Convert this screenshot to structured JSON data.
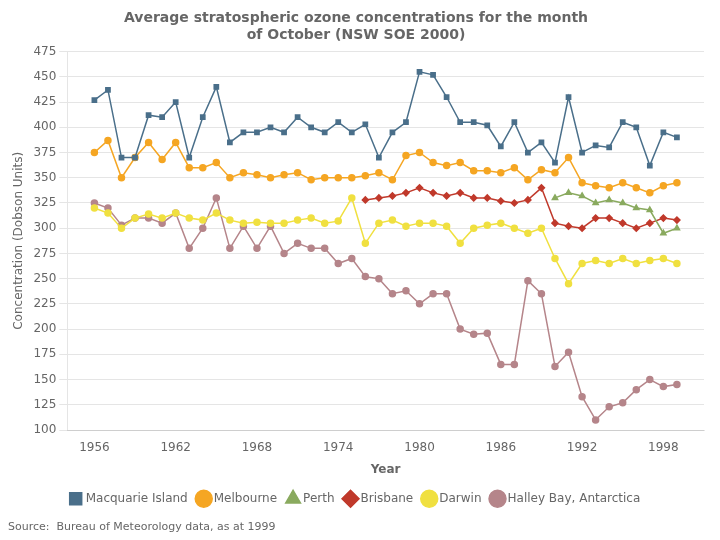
{
  "chart_data": {
    "type": "line",
    "title": [
      "Average stratospheric ozone concentrations for the month",
      "of October (NSW SOE 2000)"
    ],
    "xlabel": "Year",
    "ylabel": "Concentration (Dobson Units)",
    "annotations": [
      "Source:  Bureau of Meteorology data, as at 1999"
    ],
    "xlim": [
      1954,
      2001
    ],
    "xticks": [
      1956,
      1962,
      1968,
      1974,
      1980,
      1986,
      1992,
      1998
    ],
    "ylim": [
      100,
      475
    ],
    "yticks": [
      100,
      125,
      150,
      175,
      200,
      225,
      250,
      275,
      300,
      325,
      350,
      375,
      400,
      425,
      450,
      475
    ],
    "grid": "y",
    "legend": "bottom",
    "series": [
      {
        "name": "Macquarie Island",
        "color": "#4a6f8a",
        "marker": "square",
        "x": [
          1956,
          1957,
          1958,
          1959,
          1960,
          1961,
          1962,
          1963,
          1964,
          1965,
          1966,
          1967,
          1968,
          1969,
          1970,
          1971,
          1972,
          1973,
          1974,
          1975,
          1976,
          1977,
          1978,
          1979,
          1980,
          1981,
          1982,
          1983,
          1984,
          1985,
          1986,
          1987,
          1988,
          1989,
          1990,
          1991,
          1992,
          1993,
          1994,
          1995,
          1996,
          1997,
          1998,
          1999
        ],
        "values": [
          427,
          437,
          370,
          370,
          412,
          410,
          425,
          370,
          410,
          440,
          385,
          395,
          395,
          400,
          395,
          410,
          400,
          395,
          405,
          395,
          403,
          370,
          395,
          405,
          455,
          452,
          430,
          405,
          405,
          402,
          381,
          405,
          375,
          385,
          365,
          430,
          375,
          382,
          380,
          405,
          400,
          362,
          395,
          390
        ]
      },
      {
        "name": "Melbourne",
        "color": "#f5a623",
        "marker": "circle",
        "x": [
          1956,
          1957,
          1958,
          1959,
          1960,
          1961,
          1962,
          1963,
          1964,
          1965,
          1966,
          1967,
          1968,
          1969,
          1970,
          1971,
          1972,
          1973,
          1974,
          1975,
          1976,
          1977,
          1978,
          1979,
          1980,
          1981,
          1982,
          1983,
          1984,
          1985,
          1986,
          1987,
          1988,
          1989,
          1990,
          1991,
          1992,
          1993,
          1994,
          1995,
          1996,
          1997,
          1998,
          1999
        ],
        "values": [
          375,
          387,
          350,
          370,
          385,
          368,
          385,
          360,
          360,
          365,
          350,
          355,
          353,
          350,
          353,
          355,
          348,
          350,
          350,
          350,
          352,
          355,
          348,
          372,
          375,
          365,
          362,
          365,
          357,
          357,
          355,
          360,
          348,
          358,
          355,
          370,
          345,
          342,
          340,
          345,
          340,
          335,
          342,
          345
        ]
      },
      {
        "name": "Perth",
        "color": "#8aaa5f",
        "marker": "triangle",
        "x": [
          1990,
          1991,
          1992,
          1993,
          1994,
          1995,
          1996,
          1997,
          1998,
          1999
        ],
        "values": [
          330,
          335,
          332,
          325,
          328,
          325,
          320,
          318,
          295,
          300
        ]
      },
      {
        "name": "Brisbane",
        "color": "#c0392b",
        "marker": "diamond",
        "x": [
          1976,
          1977,
          1978,
          1979,
          1980,
          1981,
          1982,
          1983,
          1984,
          1985,
          1986,
          1987,
          1988,
          1989,
          1990,
          1991,
          1992,
          1993,
          1994,
          1995,
          1996,
          1997,
          1998,
          1999
        ],
        "values": [
          328,
          330,
          332,
          335,
          340,
          335,
          332,
          335,
          330,
          330,
          327,
          325,
          328,
          340,
          305,
          302,
          300,
          310,
          310,
          305,
          300,
          305,
          310,
          308
        ]
      },
      {
        "name": "Darwin",
        "color": "#f0e040",
        "marker": "circle",
        "x": [
          1956,
          1957,
          1958,
          1959,
          1960,
          1961,
          1962,
          1963,
          1964,
          1965,
          1966,
          1967,
          1968,
          1969,
          1970,
          1971,
          1972,
          1973,
          1974,
          1975,
          1976,
          1977,
          1978,
          1979,
          1980,
          1981,
          1982,
          1983,
          1984,
          1985,
          1986,
          1987,
          1988,
          1989,
          1990,
          1991,
          1992,
          1993,
          1994,
          1995,
          1996,
          1997,
          1998,
          1999
        ],
        "values": [
          320,
          315,
          300,
          310,
          314,
          310,
          315,
          310,
          308,
          315,
          308,
          305,
          306,
          305,
          305,
          308,
          310,
          305,
          307,
          330,
          285,
          305,
          308,
          302,
          305,
          305,
          302,
          285,
          300,
          303,
          305,
          300,
          295,
          300,
          270,
          245,
          265,
          268,
          265,
          270,
          265,
          268,
          270,
          265
        ]
      },
      {
        "name": "Halley Bay, Antarctica",
        "color": "#b5858a",
        "marker": "circle",
        "x": [
          1956,
          1957,
          1958,
          1959,
          1960,
          1961,
          1962,
          1963,
          1964,
          1965,
          1966,
          1967,
          1968,
          1969,
          1970,
          1971,
          1972,
          1973,
          1974,
          1975,
          1976,
          1977,
          1978,
          1979,
          1980,
          1981,
          1982,
          1983,
          1984,
          1985,
          1986,
          1987,
          1988,
          1989,
          1990,
          1991,
          1992,
          1993,
          1994,
          1995,
          1996,
          1997,
          1998,
          1999
        ],
        "values": [
          325,
          320,
          303,
          310,
          310,
          305,
          315,
          280,
          300,
          330,
          280,
          302,
          280,
          302,
          275,
          285,
          280,
          280,
          265,
          270,
          252,
          250,
          235,
          238,
          225,
          235,
          235,
          200,
          195,
          196,
          165,
          165,
          248,
          235,
          163,
          177,
          133,
          110,
          123,
          127,
          140,
          150,
          143,
          145
        ]
      }
    ]
  }
}
